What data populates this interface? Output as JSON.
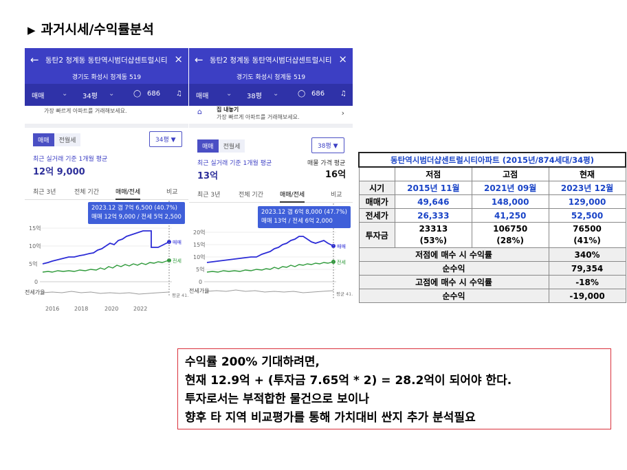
{
  "slide_title": "과거시세/수익률분석",
  "slide_title_marker": "▶",
  "phone1": {
    "back_icon": "←",
    "title": "동탄2 청계동 동탄역시범더샵센트럴시티",
    "close_icon": "×",
    "address": "경기도 화성시 청계동 519",
    "tab_type": "매매",
    "tab_area": "34평",
    "comment_count": "686",
    "banner_text": "가장 빠르게 아파트를 거래해보세요.",
    "seg_on": "매매",
    "seg_off": "전월세",
    "area_select": "34평 ▼",
    "avg_label": "최근 실거래 기준 1개월 평균",
    "avg_price": "12억 9,000",
    "periods": [
      "최근 3년",
      "전체 기간",
      "매매/전세",
      "비교"
    ],
    "tooltip_line1": "2023.12  갭 7억 6,500 (40.7%)",
    "tooltip_line2": "매매 12억 9,000 / 전세 5억 2,500",
    "y_ticks": [
      "15억",
      "10억",
      "5억",
      "0"
    ],
    "line_label_sale": "매매",
    "line_label_rent": "전세",
    "ratio_label": "전세가율",
    "ratio_end": "평균\n41.9%",
    "x_ticks": [
      "2016",
      "2018",
      "2020",
      "2022"
    ]
  },
  "phone2": {
    "back_icon": "←",
    "title": "동탄2 청계동 동탄역시범더샵센트럴시티",
    "close_icon": "×",
    "address": "경기도 화성시 청계동 519",
    "tab_type": "매매",
    "tab_area": "38평",
    "comment_count": "686",
    "banner_title": "집 내놓기",
    "banner_text": "가장 빠르게 아파트를 거래해보세요.",
    "seg_on": "매매",
    "seg_off": "전월세",
    "area_select": "38평 ▼",
    "avg_label": "최근 실거래 기준 1개월 평균",
    "avg_price": "13억",
    "ask_label": "매물 가격 평균",
    "ask_price": "16억",
    "periods": [
      "최근 3년",
      "전체 기간",
      "매매/전세",
      "비교"
    ],
    "tooltip_line1": "2023.12  갭 6억 8,000 (47.7%)",
    "tooltip_line2": "매매 13억 / 전세 6억 2,000",
    "y_ticks": [
      "20억",
      "15억",
      "10억",
      "5억",
      "0"
    ],
    "line_label_sale": "매매",
    "line_label_rent": "전세",
    "ratio_label": "전세가율",
    "ratio_end": "평균\n41.4%"
  },
  "table": {
    "title": "동탄역시범더샵센트럴시티아파트 (2015년/874세대/34평)",
    "headers": [
      "저점",
      "고점",
      "현재"
    ],
    "rows": [
      {
        "label": "시기",
        "values": [
          "2015년 11월",
          "2021년 09월",
          "2023년 12월"
        ]
      },
      {
        "label": "매매가",
        "values": [
          "49,646",
          "148,000",
          "129,000"
        ]
      },
      {
        "label": "전세가",
        "values": [
          "26,333",
          "41,250",
          "52,500"
        ]
      },
      {
        "label": "투자금",
        "values": [
          "23313\n(53%)",
          "106750\n(28%)",
          "76500\n(41%)"
        ]
      }
    ],
    "summary": [
      {
        "label": "저점에 매수 시 수익률",
        "value": "340%"
      },
      {
        "label": "순수익",
        "value": "79,354"
      },
      {
        "label": "고점에 매수 시 수익률",
        "value": "-18%"
      },
      {
        "label": "순수익",
        "value": "-19,000"
      }
    ]
  },
  "note": {
    "lines": [
      "수익률 200% 기대하려면,",
      "현재 12.9억  + (투자금 7.65억 * 2) = 28.2억이 되어야 한다.",
      "투자로서는 부적합한 물건으로 보이나",
      "향후 타 지역 비교평가를 통해 가치대비 싼지 추가 분석필요"
    ]
  },
  "colors": {
    "header": "#3c3fc4",
    "sale_line": "#2b2bd6",
    "rent_line": "#2e9a3a",
    "ratio_line": "#9a9a9a",
    "table_blue": "#1a44c7",
    "note_border": "#d9303a"
  }
}
